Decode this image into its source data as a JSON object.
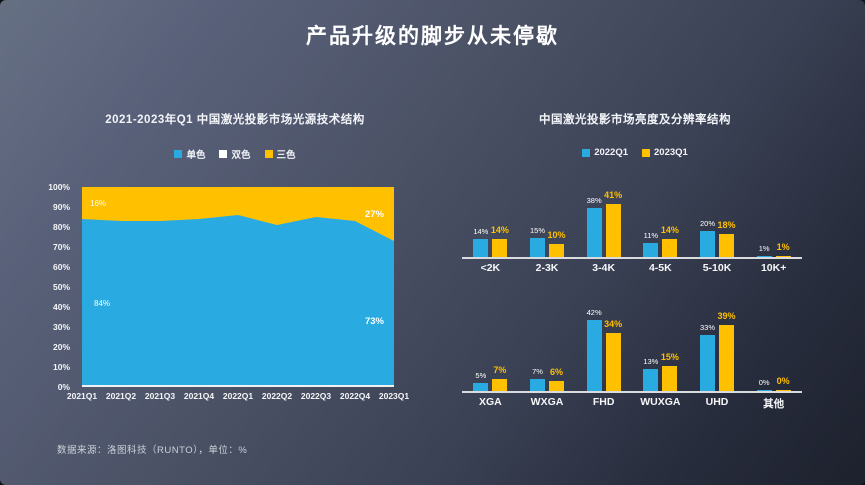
{
  "slide": {
    "title": "产品升级的脚步从未停歇",
    "source_note": "数据来源：洛图科技（RUNTO），单位：%"
  },
  "colors": {
    "series_blue": "#29abe2",
    "series_yellow": "#ffc000",
    "series_white": "#ffffff",
    "axis_line": "#d9dbde",
    "text": "#ffffff"
  },
  "chart_data": [
    {
      "type": "area",
      "name": "light-source-structure",
      "title": "2021-2023年Q1  中国激光投影市场光源技术结构",
      "stacked_to_100": true,
      "ylim": [
        0,
        100
      ],
      "yticks": [
        "100%",
        "90%",
        "80%",
        "70%",
        "60%",
        "50%",
        "40%",
        "30%",
        "20%",
        "10%",
        "0%"
      ],
      "categories": [
        "2021Q1",
        "2021Q2",
        "2021Q3",
        "2021Q4",
        "2022Q1",
        "2022Q2",
        "2022Q3",
        "2022Q4",
        "2023Q1"
      ],
      "legend": [
        {
          "label": "单色",
          "color": "#29abe2"
        },
        {
          "label": "双色",
          "color": "#ffffff"
        },
        {
          "label": "三色",
          "color": "#ffc000"
        }
      ],
      "series": [
        {
          "name": "单色",
          "color": "#29abe2",
          "values": [
            84,
            83,
            83,
            84,
            86,
            81,
            85,
            83,
            73
          ],
          "label_first": "84%",
          "label_last": "73%"
        },
        {
          "name": "双色",
          "color": "#ffffff",
          "values": [
            0,
            0,
            0,
            0,
            0,
            0,
            0,
            0,
            0
          ],
          "label_first": "",
          "label_last": ""
        },
        {
          "name": "三色",
          "color": "#ffc000",
          "values": [
            16,
            17,
            17,
            16,
            14,
            19,
            15,
            17,
            27
          ],
          "label_first": "16%",
          "label_last": "27%"
        }
      ]
    },
    {
      "type": "bar",
      "name": "brightness-structure",
      "title": "中国激光投影市场亮度及分辨率结构",
      "legend": [
        {
          "label": "2022Q1",
          "color": "#29abe2"
        },
        {
          "label": "2023Q1",
          "color": "#ffc000"
        }
      ],
      "categories": [
        "<2K",
        "2-3K",
        "3-4K",
        "4-5K",
        "5-10K",
        "10K+"
      ],
      "series": [
        {
          "name": "2022Q1",
          "color": "#29abe2",
          "values": [
            14,
            15,
            38,
            11,
            20,
            1
          ]
        },
        {
          "name": "2023Q1",
          "color": "#ffc000",
          "values": [
            14,
            10,
            41,
            14,
            18,
            1
          ]
        }
      ]
    },
    {
      "type": "bar",
      "name": "resolution-structure",
      "categories": [
        "XGA",
        "WXGA",
        "FHD",
        "WUXGA",
        "UHD",
        "其他"
      ],
      "series": [
        {
          "name": "2022Q1",
          "color": "#29abe2",
          "values": [
            5,
            7,
            42,
            13,
            33,
            0
          ]
        },
        {
          "name": "2023Q1",
          "color": "#ffc000",
          "values": [
            7,
            6,
            34,
            15,
            39,
            0
          ]
        }
      ]
    }
  ]
}
